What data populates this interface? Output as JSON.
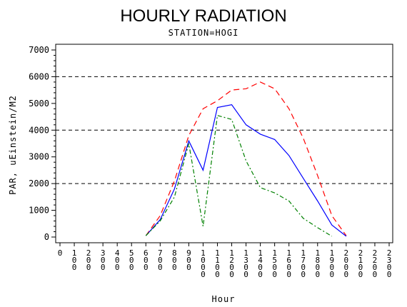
{
  "chart_data": {
    "type": "line",
    "title": "HOURLY RADIATION",
    "subtitle": "STATION=HOGI",
    "xlabel": "Hour",
    "ylabel": "PAR, uEinstein/M2",
    "xlim": [
      0,
      2300
    ],
    "ylim": [
      0,
      7000
    ],
    "x_ticks": [
      0,
      100,
      200,
      300,
      400,
      500,
      600,
      700,
      800,
      900,
      1000,
      1100,
      1200,
      1300,
      1400,
      1500,
      1600,
      1700,
      1800,
      1900,
      2000,
      2100,
      2200,
      2300
    ],
    "x_tick_labels": [
      "0",
      "100",
      "200",
      "300",
      "400",
      "500",
      "600",
      "700",
      "800",
      "900",
      "1000",
      "1100",
      "1200",
      "1300",
      "1400",
      "1500",
      "1600",
      "1700",
      "1800",
      "1900",
      "2000",
      "2100",
      "2200",
      "2300"
    ],
    "y_ticks": [
      0,
      1000,
      2000,
      3000,
      4000,
      5000,
      6000,
      7000
    ],
    "y_tick_labels": [
      "0",
      "1000",
      "2000",
      "3000",
      "4000",
      "5000",
      "6000",
      "7000"
    ],
    "reference_lines": [
      2000,
      4000,
      6000
    ],
    "grid": false,
    "legend": "none",
    "series": [
      {
        "color": "#ff0000",
        "dash": "dashed",
        "x": [
          600,
          700,
          800,
          900,
          1000,
          1100,
          1200,
          1300,
          1400,
          1500,
          1600,
          1700,
          1800,
          1900,
          2000
        ],
        "y": [
          50,
          800,
          2100,
          3800,
          4800,
          5100,
          5500,
          5550,
          5800,
          5550,
          4800,
          3700,
          2300,
          800,
          50
        ]
      },
      {
        "color": "#0000ff",
        "dash": "solid",
        "x": [
          600,
          700,
          800,
          900,
          1000,
          1100,
          1200,
          1300,
          1400,
          1500,
          1600,
          1700,
          1800,
          1900,
          2000
        ],
        "y": [
          50,
          650,
          1800,
          3600,
          2500,
          4850,
          4950,
          4200,
          3850,
          3650,
          3050,
          2200,
          1350,
          450,
          30
        ]
      },
      {
        "color": "#008000",
        "dash": "dashdot",
        "x": [
          600,
          700,
          800,
          900,
          1000,
          1100,
          1200,
          1300,
          1400,
          1500,
          1600,
          1700,
          1800,
          1900
        ],
        "y": [
          50,
          600,
          1500,
          3500,
          400,
          4550,
          4400,
          2850,
          1850,
          1650,
          1350,
          700,
          350,
          30
        ]
      }
    ]
  }
}
